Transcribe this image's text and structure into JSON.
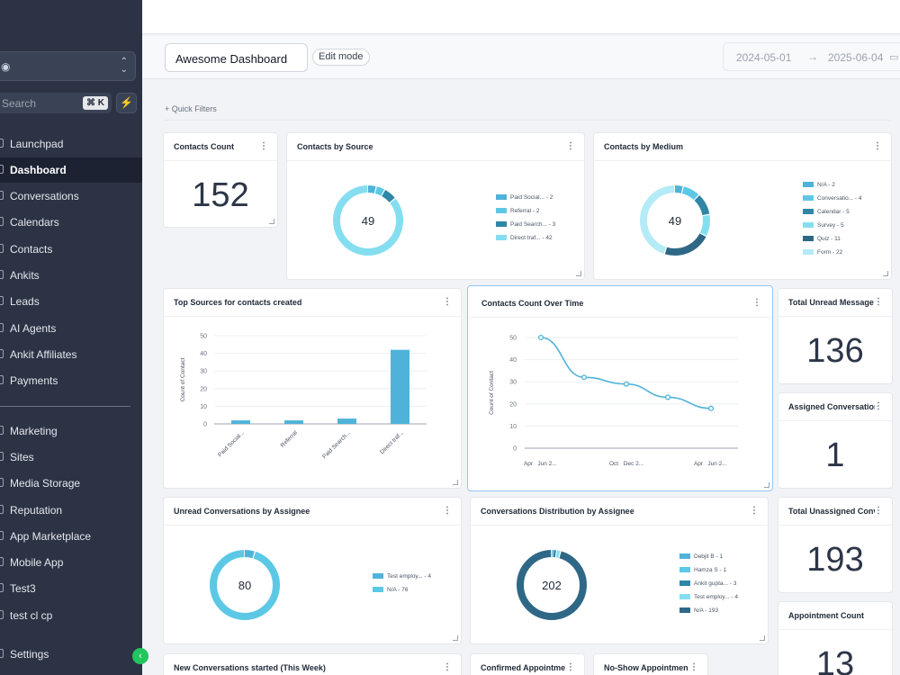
{
  "sidebar": {
    "search_label": "Search",
    "search_shortcut": "⌘ K",
    "items": [
      {
        "label": "Launchpad"
      },
      {
        "label": "Dashboard"
      },
      {
        "label": "Conversations"
      },
      {
        "label": "Calendars"
      },
      {
        "label": "Contacts"
      },
      {
        "label": "Ankits"
      },
      {
        "label": "Leads"
      },
      {
        "label": "AI Agents"
      },
      {
        "label": "Ankit Affiliates"
      },
      {
        "label": "Payments"
      },
      {
        "label": "Marketing"
      },
      {
        "label": "Sites"
      },
      {
        "label": "Media Storage"
      },
      {
        "label": "Reputation"
      },
      {
        "label": "App Marketplace"
      },
      {
        "label": "Mobile App"
      },
      {
        "label": "Test3"
      },
      {
        "label": "test cl cp"
      },
      {
        "label": "Settings"
      }
    ]
  },
  "header": {
    "dashboard_name": "Awesome Dashboard",
    "edit_mode": "Edit mode",
    "date_start": "2024-05-01",
    "date_end": "2025-06-04",
    "quick_filters": "+ Quick Filters"
  },
  "widgets": {
    "contacts_count": {
      "title": "Contacts Count",
      "value": "152"
    },
    "contacts_by_source": {
      "title": "Contacts by Source",
      "total": "49",
      "legend": [
        "Paid Social... - 2",
        "Referral - 2",
        "Paid Search... - 3",
        "Direct traf... - 42"
      ]
    },
    "contacts_by_medium": {
      "title": "Contacts by Medium",
      "total": "49",
      "legend": [
        "N/A - 2",
        "Conversatio... - 4",
        "Calendar - 5",
        "Survey - 5",
        "Quiz - 11",
        "Form - 22"
      ]
    },
    "top_sources": {
      "title": "Top Sources for contacts created"
    },
    "contacts_over_time": {
      "title": "Contacts Count Over Time"
    },
    "total_unread": {
      "title": "Total Unread Message",
      "value": "136"
    },
    "assigned_conversations": {
      "title": "Assigned Conversation",
      "value": "1"
    },
    "unread_by_assignee": {
      "title": "Unread Conversations by Assignee",
      "total": "80",
      "legend": [
        "Test employ... - 4",
        "N/A - 76"
      ]
    },
    "distribution_by_assignee": {
      "title": "Conversations Distribution by Assignee",
      "total": "202",
      "legend": [
        "Debjit B - 1",
        "Hamza S - 1",
        "Ankit gupta... - 3",
        "Test employ... - 4",
        "N/A - 193"
      ]
    },
    "total_unassigned": {
      "title": "Total Unassigned Conv",
      "value": "193"
    },
    "appointment_count": {
      "title": "Appointment Count",
      "value": "13"
    },
    "new_conversations": {
      "title": "New Conversations started (This Week)"
    },
    "confirmed_appointments": {
      "title": "Confirmed Appointme"
    },
    "noshow_appointments": {
      "title": "No-Show Appointmen"
    }
  },
  "colors": {
    "sidebar_bg": "#2b3345",
    "c1": "#4fb3d9",
    "c2": "#5cc8e6",
    "c3": "#2f86a6",
    "c4": "#85def0",
    "c5": "#2f6886",
    "c6": "#b4ebf7"
  },
  "chart_data": [
    {
      "type": "bar",
      "title": "Top Sources for contacts created",
      "ylabel": "Count of Contact",
      "categories": [
        "Paid Social...",
        "Referral",
        "Paid Search...",
        "Direct traf..."
      ],
      "values": [
        2,
        2,
        3,
        42
      ],
      "ylim": [
        0,
        50
      ],
      "yticks": [
        0,
        10,
        20,
        30,
        40,
        50
      ]
    },
    {
      "type": "line",
      "title": "Contacts Count Over Time",
      "ylabel": "Count of Contact",
      "x": [
        0,
        1,
        2,
        3,
        4
      ],
      "values": [
        50,
        32,
        29,
        23,
        18
      ],
      "ylim": [
        0,
        50
      ],
      "yticks": [
        0,
        10,
        20,
        30,
        40,
        50
      ],
      "xtick_labels": [
        "Apr",
        "Jun 2...",
        "Oct",
        "Dec 2...",
        "Apr",
        "Jun 2..."
      ]
    },
    {
      "type": "pie",
      "title": "Contacts by Source",
      "categories": [
        "Paid Social...",
        "Referral",
        "Paid Search...",
        "Direct traf..."
      ],
      "values": [
        2,
        2,
        3,
        42
      ]
    },
    {
      "type": "pie",
      "title": "Contacts by Medium",
      "categories": [
        "N/A",
        "Conversatio...",
        "Calendar",
        "Survey",
        "Quiz",
        "Form"
      ],
      "values": [
        2,
        4,
        5,
        5,
        11,
        22
      ]
    },
    {
      "type": "pie",
      "title": "Unread Conversations by Assignee",
      "categories": [
        "Test employ...",
        "N/A"
      ],
      "values": [
        4,
        76
      ]
    },
    {
      "type": "pie",
      "title": "Conversations Distribution by Assignee",
      "categories": [
        "Debjit B",
        "Hamza S",
        "Ankit gupta...",
        "Test employ...",
        "N/A"
      ],
      "values": [
        1,
        1,
        3,
        4,
        193
      ]
    }
  ]
}
